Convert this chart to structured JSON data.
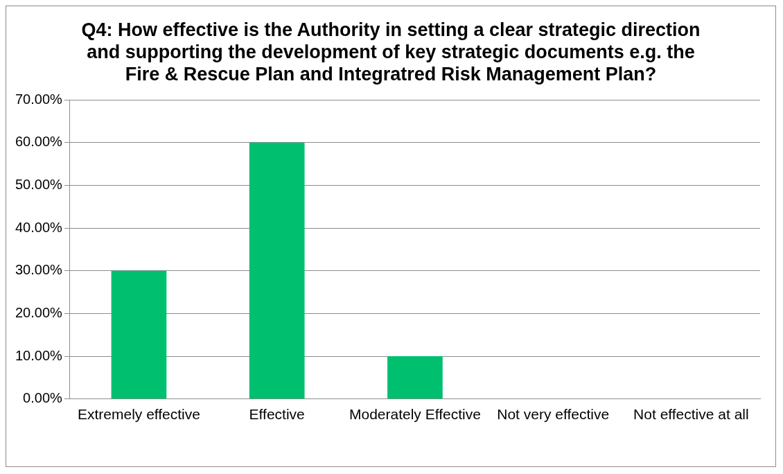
{
  "chart_data": {
    "type": "bar",
    "title": "Q4: How effective is the Authority in setting a clear strategic direction and supporting the development of key strategic documents e.g. the Fire & Rescue Plan and Integratred Risk Management Plan?",
    "categories": [
      "Extremely effective",
      "Effective",
      "Moderately Effective",
      "Not very effective",
      "Not effective at all"
    ],
    "values": [
      30,
      60,
      10,
      0,
      0
    ],
    "color": "#00c06f",
    "ylim": [
      0,
      70
    ],
    "yticks": [
      {
        "value": 0,
        "label": "0.00%"
      },
      {
        "value": 10,
        "label": "10.00%"
      },
      {
        "value": 20,
        "label": "20.00%"
      },
      {
        "value": 30,
        "label": "30.00%"
      },
      {
        "value": 40,
        "label": "40.00%"
      },
      {
        "value": 50,
        "label": "50.00%"
      },
      {
        "value": 60,
        "label": "60.00%"
      },
      {
        "value": 70,
        "label": "70.00%"
      }
    ],
    "grid": "y",
    "legend": false
  }
}
